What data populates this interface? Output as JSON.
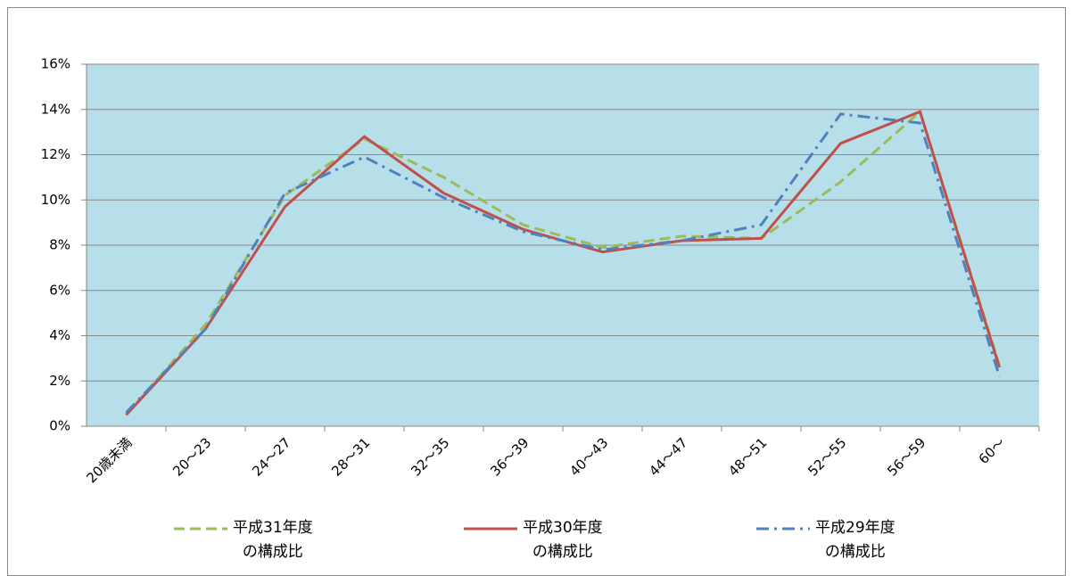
{
  "chart_data": {
    "type": "line",
    "categories": [
      "20歳未満",
      "20～23",
      "24～27",
      "28～31",
      "32～35",
      "36～39",
      "40～43",
      "44～47",
      "48～51",
      "52～55",
      "56～59",
      "60～"
    ],
    "series": [
      {
        "name": "平成31年度\nの構成比",
        "color": "#9bbb59",
        "dash": "dashed",
        "values": [
          0.5,
          4.5,
          10.2,
          12.7,
          11.0,
          8.9,
          7.9,
          8.4,
          8.3,
          10.8,
          13.9,
          2.7
        ]
      },
      {
        "name": "平成30年度\nの構成比",
        "color": "#c0504d",
        "dash": "solid",
        "values": [
          0.5,
          4.3,
          9.7,
          12.8,
          10.3,
          8.7,
          7.7,
          8.2,
          8.3,
          12.5,
          13.9,
          2.6
        ]
      },
      {
        "name": "平成29年度\nの構成比",
        "color": "#4f81bd",
        "dash": "dashdot",
        "values": [
          0.6,
          4.3,
          10.3,
          11.9,
          10.1,
          8.6,
          7.8,
          8.2,
          8.9,
          13.8,
          13.4,
          2.2
        ]
      }
    ],
    "ylim": [
      0,
      16
    ],
    "yticks": [
      {
        "value": 0,
        "label": "0%"
      },
      {
        "value": 2,
        "label": "2%"
      },
      {
        "value": 4,
        "label": "4%"
      },
      {
        "value": 6,
        "label": "6%"
      },
      {
        "value": 8,
        "label": "8%"
      },
      {
        "value": 10,
        "label": "10%"
      },
      {
        "value": 12,
        "label": "12%"
      },
      {
        "value": 14,
        "label": "14%"
      },
      {
        "value": 16,
        "label": "16%"
      }
    ],
    "grid": true,
    "plot_background": "#b7dfe9",
    "legend": "bottom"
  }
}
